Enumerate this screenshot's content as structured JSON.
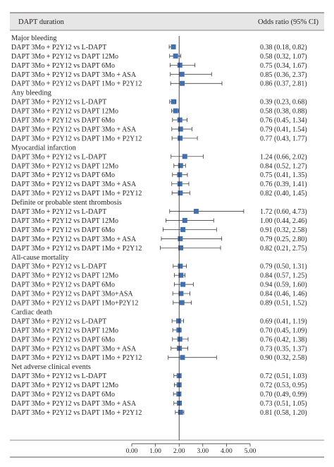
{
  "chart_data": {
    "type": "forest",
    "header": {
      "left": "DAPT duration",
      "right": "Odds ratio (95% CI)"
    },
    "xlim": [
      0,
      5
    ],
    "xticks": [
      "0.00",
      "1.00",
      "2.00",
      "3.00",
      "4.00",
      "5.00"
    ],
    "reference_line": 2,
    "marker_color": "#3f6fb5",
    "groups": [
      {
        "title": "Major bleeding",
        "rows": [
          {
            "label": "DAPT 3Mo + P2Y12 vs L-DAPT",
            "or_text": "0.38 (0.18, 0.82)",
            "x": 1.76,
            "lo": 1.58,
            "hi": 1.82
          },
          {
            "label": "DAPT 3Mo + P2Y12 vs DAPT 12Mo",
            "or_text": "0.58 (0.32, 1.07)",
            "x": 1.85,
            "lo": 1.6,
            "hi": 2.07
          },
          {
            "label": "DAPT 3Mo + P2Y12 vs DAPT 6Mo",
            "or_text": "0.75 (0.34, 1.67)",
            "x": 2.03,
            "lo": 1.62,
            "hi": 2.67
          },
          {
            "label": "DAPT 3Mo + P2Y12 vs DAPT 3Mo + ASA",
            "or_text": "0.85 (0.36, 2.37)",
            "x": 2.12,
            "lo": 1.63,
            "hi": 3.37
          },
          {
            "label": "DAPT 3Mo + P2Y12 vs DAPT 1Mo + P2Y12",
            "or_text": "0.86 (0.37, 2.81)",
            "x": 2.13,
            "lo": 1.64,
            "hi": 3.81
          }
        ]
      },
      {
        "title": "Any bleeding",
        "rows": [
          {
            "label": "DAPT 3Mo + P2Y12 vs L-DAPT",
            "or_text": "0.39 (0.23, 0.68)",
            "x": 1.76,
            "lo": 1.6,
            "hi": 1.87
          },
          {
            "label": "DAPT 3Mo + P2Y12 vs DAPT 12Mo",
            "or_text": "0.58 (0.38, 0.88)",
            "x": 1.85,
            "lo": 1.68,
            "hi": 1.98
          },
          {
            "label": "DAPT 3Mo + P2Y12 vs DAPT 6Mo",
            "or_text": "0.76 (0.45, 1.34)",
            "x": 2.03,
            "lo": 1.72,
            "hi": 2.34
          },
          {
            "label": "DAPT 3Mo + P2Y12 vs DAPT 3Mo + ASA",
            "or_text": "0.79 (0.41, 1.54)",
            "x": 2.06,
            "lo": 1.69,
            "hi": 2.54
          },
          {
            "label": "DAPT 3Mo + P2Y12 vs DAPT 1Mo + P2Y12",
            "or_text": "0.77 (0.43, 1.77)",
            "x": 2.04,
            "lo": 1.7,
            "hi": 2.77
          }
        ]
      },
      {
        "title": "Myocardial infarction",
        "rows": [
          {
            "label": "DAPT 3Mo + P2Y12 vs L-DAPT",
            "or_text": "1.24 (0.66, 2.02)",
            "x": 2.24,
            "lo": 1.66,
            "hi": 3.02
          },
          {
            "label": "DAPT 3Mo + P2Y12 vs DAPT 12Mo",
            "or_text": "0.84 (0.52, 1.27)",
            "x": 2.06,
            "lo": 1.78,
            "hi": 2.27
          },
          {
            "label": "DAPT 3Mo + P2Y12 vs DAPT 6Mo",
            "or_text": "0.75 (0.41, 1.35)",
            "x": 2.02,
            "lo": 1.72,
            "hi": 2.35
          },
          {
            "label": "DAPT 3Mo + P2Y12 vs DAPT 3Mo + ASA",
            "or_text": "0.76 (0.39, 1.41)",
            "x": 2.03,
            "lo": 1.69,
            "hi": 2.41
          },
          {
            "label": "DAPT 3Mo + P2Y12 vs DAPT 1Mo + P2Y12",
            "or_text": "0.82 (0.40, 1.45)",
            "x": 2.05,
            "lo": 1.7,
            "hi": 2.45
          }
        ]
      },
      {
        "title": "Definite or probable stent thrombosis",
        "rows": [
          {
            "label": "DAPT 3Mo + P2Y12 vs L-DAPT",
            "or_text": "1.72 (0.60, 4.73)",
            "x": 2.72,
            "lo": 1.6,
            "hi": 4.73
          },
          {
            "label": "DAPT 3Mo + P2Y12 vs DAPT 12Mo",
            "or_text": "1.00 (0.44, 2.46)",
            "x": 2.24,
            "lo": 1.44,
            "hi": 3.46
          },
          {
            "label": "DAPT 3Mo + P2Y12 vs DAPT 6Mo",
            "or_text": "0.91 (0.32, 2.58)",
            "x": 2.16,
            "lo": 1.32,
            "hi": 3.58
          },
          {
            "label": "DAPT 3Mo + P2Y12 vs DAPT 3Mo + ASA",
            "or_text": "0.79 (0.25, 2.80)",
            "x": 2.05,
            "lo": 1.25,
            "hi": 3.8
          },
          {
            "label": "DAPT 3Mo + P2Y12 vs DAPT 1Mo + P2Y12",
            "or_text": "0.82 (0.21, 2.75)",
            "x": 2.07,
            "lo": 1.21,
            "hi": 3.75
          }
        ]
      },
      {
        "title": "All-cause mortality",
        "rows": [
          {
            "label": "DAPT 3Mo + P2Y12 vs L-DAPT",
            "or_text": "0.79 (0.50, 1.31)",
            "x": 2.05,
            "lo": 1.75,
            "hi": 2.31
          },
          {
            "label": "DAPT 3Mo + P2Y12 vs DAPT 12Mo",
            "or_text": "0.84 (0.57, 1.25)",
            "x": 2.08,
            "lo": 1.8,
            "hi": 2.25
          },
          {
            "label": "DAPT 3Mo + P2Y12 vs DAPT 6Mo",
            "or_text": "0.94 (0.59, 1.60)",
            "x": 2.16,
            "lo": 1.8,
            "hi": 2.6
          },
          {
            "label": "DAPT 3Mo + P2Y12 vs DAPT 3Mo+ASA",
            "or_text": "0.84 (0.46, 1.46)",
            "x": 2.08,
            "lo": 1.73,
            "hi": 2.46
          },
          {
            "label": "DAPT 3Mo + P2Y12 vs DAPT 1Mo+P2Y12",
            "or_text": "0.89 (0.51, 1.52)",
            "x": 2.12,
            "lo": 1.75,
            "hi": 2.52
          }
        ]
      },
      {
        "title": "Cardiac death",
        "rows": [
          {
            "label": "DAPT 3Mo + P2Y12 vs L-DAPT",
            "or_text": "0.69 (0.41, 1.19)",
            "x": 1.98,
            "lo": 1.7,
            "hi": 2.19
          },
          {
            "label": "DAPT 3Mo + P2Y12 vs DAPT 12Mo",
            "or_text": "0.70 (0.45, 1.09)",
            "x": 1.99,
            "lo": 1.73,
            "hi": 2.09
          },
          {
            "label": "DAPT 3Mo + P2Y12 vs DAPT 6Mo",
            "or_text": "0.76 (0.42, 1.38)",
            "x": 2.03,
            "lo": 1.72,
            "hi": 2.38
          },
          {
            "label": "DAPT 3Mo + P2Y12 vs DAPT 3Mo + ASA",
            "or_text": "0.73 (0.35, 1.37)",
            "x": 2.01,
            "lo": 1.66,
            "hi": 2.37
          },
          {
            "label": "DAPT 3Mo + P2Y12 vs DAPT 1Mo + P2Y12",
            "or_text": "0.90 (0.32, 2.58)",
            "x": 2.14,
            "lo": 1.54,
            "hi": 3.58
          }
        ]
      },
      {
        "title": "Net adverse clinical events",
        "rows": [
          {
            "label": "DAPT 3Mo + P2Y12 vs L-DAPT",
            "or_text": "0.72 (0.51, 1.03)",
            "x": 2.0,
            "lo": 1.78,
            "hi": 2.03
          },
          {
            "label": "DAPT 3Mo + P2Y12 vs DAPT 12Mo",
            "or_text": "0.72 (0.53, 0.95)",
            "x": 2.0,
            "lo": 1.8,
            "hi": 2.05
          },
          {
            "label": "DAPT 3Mo + P2Y12 vs DAPT 6Mo",
            "or_text": "0.70 (0.49, 0.99)",
            "x": 1.99,
            "lo": 1.76,
            "hi": 2.06
          },
          {
            "label": "DAPT 3Mo + P2Y12 vs DAPT 3Mo + ASA",
            "or_text": "0.73 (0.51, 1.05)",
            "x": 2.01,
            "lo": 1.78,
            "hi": 2.05
          },
          {
            "label": "DAPT 3Mo + P2Y12 vs DAPT 1Mo + P2Y12",
            "or_text": "0.81 (0.58, 1.20)",
            "x": 2.06,
            "lo": 1.84,
            "hi": 2.2
          }
        ]
      }
    ]
  }
}
